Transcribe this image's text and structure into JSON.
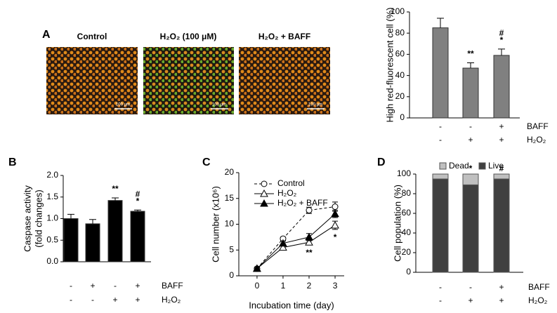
{
  "images": {
    "panel": "A",
    "labels": [
      "Control",
      "H₂O₂ (100 μM)",
      "H₂O₂ + BAFF"
    ],
    "scale_bar": "100 μm"
  },
  "chart_data": [
    {
      "type": "bar",
      "ylabel": [
        "High red-fluorescent cell (%)"
      ],
      "color": "#808080",
      "values": [
        85,
        47,
        59
      ],
      "errors": [
        9,
        5,
        6
      ],
      "ylim": [
        0,
        100
      ],
      "yticks": [
        0,
        20,
        40,
        60,
        80,
        100
      ],
      "conditions": [
        {
          "name": "BAFF",
          "values": [
            "-",
            "-",
            "+"
          ]
        },
        {
          "name": "H₂O₂",
          "values": [
            "-",
            "+",
            "+"
          ]
        }
      ],
      "annotations": [
        {
          "bar": 1,
          "text": "**"
        },
        {
          "bar": 2,
          "text": "*"
        },
        {
          "bar": 2,
          "text": "#"
        }
      ]
    },
    {
      "type": "bar",
      "panel": "B",
      "ylabel": [
        "Caspase activity",
        "(fold changes)"
      ],
      "color": "#000000",
      "values": [
        1.0,
        0.88,
        1.42,
        1.17
      ],
      "errors": [
        0.1,
        0.1,
        0.06,
        0.03
      ],
      "ylim": [
        0,
        2.0
      ],
      "yticks": [
        {
          "value": 0,
          "label": "0.0"
        },
        0.5,
        {
          "value": 1,
          "label": "1.0"
        },
        1.5,
        {
          "value": 2,
          "label": "2.0"
        }
      ],
      "conditions": [
        {
          "name": "BAFF",
          "values": [
            "-",
            "+",
            "-",
            "+"
          ]
        },
        {
          "name": "H₂O₂",
          "values": [
            "-",
            "-",
            "+",
            "+"
          ]
        }
      ],
      "annotations": [
        {
          "bar": 2,
          "text": "**"
        },
        {
          "bar": 3,
          "text": "*"
        },
        {
          "bar": 3,
          "text": "#"
        }
      ]
    },
    {
      "type": "line",
      "panel": "C",
      "ylabel": [
        "Cell number (x10⁶)"
      ],
      "xlabel": "Incubation time (day)",
      "x": [
        0,
        1,
        2,
        3
      ],
      "xlim": [
        -0.7,
        3.35
      ],
      "xticks": [
        0,
        1,
        2,
        3
      ],
      "ylim": [
        0,
        20
      ],
      "yticks": [
        0,
        5,
        10,
        15,
        20
      ],
      "series": [
        {
          "name": "Control",
          "color": "#000000",
          "marker": "circle-open",
          "dashed": true,
          "values": [
            1.4,
            7.2,
            12.7,
            13.4
          ],
          "errors": [
            0.2,
            0.3,
            0.6,
            0.9
          ]
        },
        {
          "name": "H₂O₂",
          "color": "#000000",
          "marker": "triangle-open",
          "dashed": false,
          "values": [
            1.4,
            5.5,
            6.5,
            9.8
          ],
          "errors": [
            0.2,
            0.4,
            0.5,
            0.8
          ]
        },
        {
          "name": "H₂O₂ + BAFF",
          "color": "#000000",
          "marker": "triangle-filled",
          "dashed": false,
          "values": [
            1.4,
            6.3,
            7.5,
            12.0
          ],
          "errors": [
            0.2,
            0.4,
            0.7,
            0.7
          ]
        }
      ],
      "annotations": [
        {
          "x": 2,
          "text": "**"
        },
        {
          "x": 3,
          "text": "*"
        }
      ]
    },
    {
      "type": "stacked_bar",
      "panel": "D",
      "ylabel": [
        "Cell population (%)"
      ],
      "series": [
        {
          "name": "Live",
          "color": "#404040",
          "values": [
            95,
            89,
            95
          ]
        },
        {
          "name": "Dead",
          "color": "#c0c0c0",
          "values": [
            5,
            11,
            5
          ]
        }
      ],
      "legend": [
        "Dead",
        "Live"
      ],
      "ylim": [
        0,
        100
      ],
      "yticks": [
        0,
        20,
        40,
        60,
        80,
        100
      ],
      "conditions": [
        {
          "name": "BAFF",
          "values": [
            "-",
            "-",
            "+"
          ]
        },
        {
          "name": "H₂O₂",
          "values": [
            "-",
            "+",
            "+"
          ]
        }
      ],
      "annotations": [
        {
          "bar": 1,
          "text": "*"
        },
        {
          "bar": 2,
          "text": "#"
        }
      ]
    }
  ]
}
